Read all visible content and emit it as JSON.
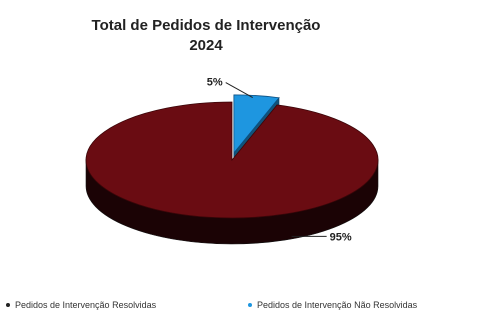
{
  "chart_data": {
    "type": "pie",
    "title_lines": [
      "Total de Pedidos de Intervenção",
      "2024"
    ],
    "slices": [
      {
        "name": "Pedidos de Intervenção Resolvidas",
        "value": 95,
        "label": "95%",
        "color": "#6a0c12"
      },
      {
        "name": "Pedidos de Intervenção Não Resolvidas",
        "value": 5,
        "label": "5%",
        "color": "#1e96e0"
      }
    ],
    "legend_placement": "bottom",
    "style": "3d-exploded"
  }
}
